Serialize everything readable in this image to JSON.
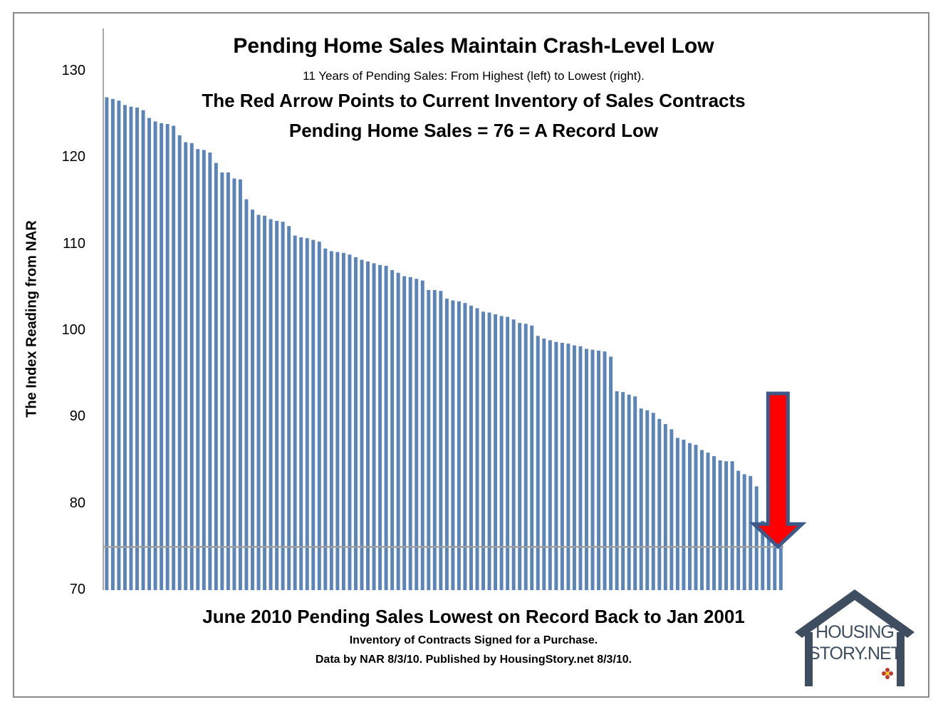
{
  "chart_data": {
    "type": "bar",
    "title": "Pending Home Sales Maintain Crash-Level Low",
    "subtitle": "11 Years of Pending Sales: From Highest (left) to Lowest (right).",
    "annotation_lines": [
      "The Red Arrow Points to Current Inventory of Sales Contracts",
      "Pending Home Sales = 76 = A Record Low"
    ],
    "ylabel": "The Index Reading from NAR",
    "ylim": [
      70,
      130
    ],
    "yticks": [
      "70",
      "80",
      "90",
      "100",
      "110",
      "120",
      "130"
    ],
    "grid": false,
    "reference_line_value": 75,
    "colors": {
      "bars": "#5b84b8",
      "reference_line": "#a0a0a0",
      "arrow": "#ff0000",
      "arrow_outline": "#3b5a8a"
    },
    "values": [
      127.0,
      126.8,
      126.6,
      126.1,
      125.9,
      125.8,
      125.5,
      124.6,
      124.2,
      124.0,
      123.9,
      123.7,
      122.6,
      121.8,
      121.7,
      121.0,
      120.9,
      120.6,
      119.4,
      118.3,
      118.3,
      117.6,
      117.5,
      115.2,
      114.0,
      113.4,
      113.3,
      112.9,
      112.7,
      112.6,
      112.1,
      111.0,
      110.8,
      110.7,
      110.5,
      110.3,
      109.5,
      109.2,
      109.1,
      109.0,
      108.8,
      108.5,
      108.2,
      108.0,
      107.8,
      107.6,
      107.5,
      107.0,
      106.7,
      106.3,
      106.2,
      106.0,
      105.8,
      104.7,
      104.7,
      104.6,
      103.7,
      103.5,
      103.4,
      103.2,
      102.9,
      102.6,
      102.2,
      102.1,
      101.9,
      101.7,
      101.6,
      101.3,
      100.9,
      100.8,
      100.6,
      99.4,
      99.1,
      98.9,
      98.7,
      98.6,
      98.5,
      98.3,
      98.2,
      97.9,
      97.8,
      97.7,
      97.6,
      97.0,
      93.0,
      92.9,
      92.6,
      92.4,
      91.0,
      90.8,
      90.5,
      89.8,
      89.2,
      88.6,
      87.6,
      87.4,
      87.0,
      86.8,
      86.2,
      85.9,
      85.5,
      85.0,
      84.9,
      84.9,
      83.8,
      83.4,
      83.2,
      82.0,
      78.0,
      76.1,
      76.0,
      76.0
    ],
    "highlight": {
      "label": "Pending Home Sales = 76",
      "value": 76
    }
  },
  "footer": {
    "headline": "June 2010 Pending Sales Lowest on Record Back to Jan 2001",
    "line2": "Inventory of Contracts Signed for a Purchase.",
    "line3": "Data by NAR 8/3/10. Published by HousingStory.net 8/3/10."
  },
  "logo": {
    "line1": "HOUSING",
    "line2": "STORY.NET",
    "color": "#3e4e60",
    "flower_color": "#c0392b"
  }
}
